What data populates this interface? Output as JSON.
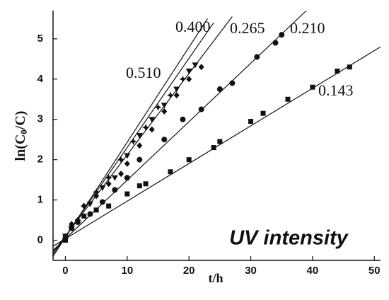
{
  "chart_data": {
    "type": "scatter",
    "xlabel": "t/h",
    "ylabel": [
      "ln(C",
      "0",
      "/C)"
    ],
    "annotation": "UV intensity",
    "xlim": [
      -2,
      51
    ],
    "ylim": [
      -0.5,
      5.7
    ],
    "xticks": [
      0,
      10,
      20,
      30,
      40,
      50
    ],
    "yticks": [
      0,
      1,
      2,
      3,
      4,
      5
    ],
    "color": "#111111",
    "series": [
      {
        "name": "0.400",
        "marker": "triangle-down",
        "x": [
          0,
          1,
          2,
          4,
          6,
          8,
          10,
          12,
          14,
          16,
          18,
          20,
          21
        ],
        "values": [
          0.1,
          0.3,
          0.45,
          0.9,
          1.3,
          1.55,
          2.1,
          2.6,
          3.0,
          3.35,
          3.75,
          4.2,
          4.35
        ],
        "fit": {
          "x": [
            -2,
            24
          ],
          "values": [
            -0.35,
            5.4
          ]
        }
      },
      {
        "name": "0.265",
        "marker": "diamond",
        "x": [
          0,
          1,
          2,
          3,
          5,
          7,
          9,
          10,
          12,
          14,
          16,
          18,
          20,
          22
        ],
        "values": [
          0.1,
          0.4,
          0.5,
          0.85,
          1.1,
          1.4,
          1.65,
          1.9,
          2.35,
          2.75,
          3.2,
          3.6,
          4.0,
          4.3
        ],
        "fit": {
          "x": [
            -2,
            27
          ],
          "values": [
            -0.3,
            5.55
          ]
        }
      },
      {
        "name": "0.210",
        "marker": "circle",
        "x": [
          0,
          1,
          2,
          4,
          6,
          8,
          10,
          12,
          16,
          19,
          22,
          25,
          27,
          31,
          34,
          35
        ],
        "values": [
          0.05,
          0.3,
          0.45,
          0.65,
          0.95,
          1.25,
          1.55,
          2.0,
          2.5,
          3.0,
          3.25,
          3.75,
          3.9,
          4.55,
          4.9,
          5.1
        ],
        "fit": {
          "x": [
            -2,
            39
          ],
          "values": [
            -0.25,
            5.7
          ]
        }
      },
      {
        "name": "0.510",
        "marker": "star",
        "x": [
          0,
          1,
          3,
          5,
          7,
          9,
          11,
          13,
          15,
          17,
          19
        ],
        "values": [
          0.05,
          0.35,
          0.85,
          1.2,
          1.55,
          2.0,
          2.45,
          2.8,
          3.3,
          3.6,
          4.0
        ],
        "fit": {
          "x": [
            -2,
            23
          ],
          "values": [
            -0.4,
            5.5
          ]
        }
      },
      {
        "name": "0.143",
        "marker": "square",
        "x": [
          0,
          1,
          3,
          5,
          7,
          10,
          12,
          13,
          17,
          20,
          24,
          25,
          30,
          32,
          36,
          40,
          44,
          46
        ],
        "values": [
          0,
          0.3,
          0.6,
          0.75,
          0.85,
          1.15,
          1.35,
          1.4,
          1.7,
          2.0,
          2.3,
          2.45,
          2.95,
          3.15,
          3.5,
          3.8,
          4.2,
          4.3
        ],
        "fit": {
          "x": [
            -2,
            51
          ],
          "values": [
            -0.15,
            4.8
          ]
        }
      }
    ]
  }
}
